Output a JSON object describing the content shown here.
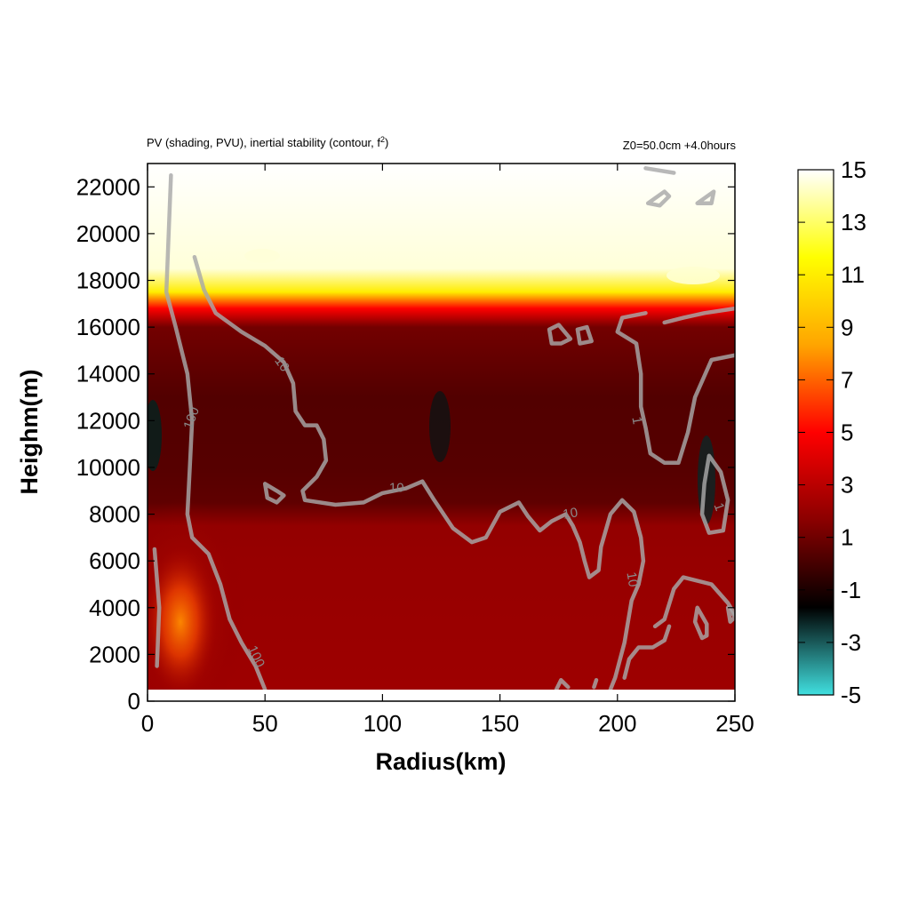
{
  "chart_data": {
    "type": "heatmap",
    "title": "PV (shading, PVU), inertial stability (contour, f",
    "title_superscript": "2",
    "title_suffix": ")",
    "annotation": "Z0=50.0cm  +4.0hours",
    "xlabel": "Radius(km)",
    "ylabel": "Heighm(m)",
    "xlim": [
      0,
      250
    ],
    "ylim": [
      0,
      23000
    ],
    "x_ticks": [
      "0",
      "50",
      "100",
      "150",
      "200",
      "250"
    ],
    "y_ticks": [
      "0",
      "2000",
      "4000",
      "6000",
      "8000",
      "10000",
      "12000",
      "14000",
      "16000",
      "18000",
      "20000",
      "22000"
    ],
    "colorbar": {
      "min": -5,
      "max": 15,
      "ticks": [
        "15",
        "13",
        "11",
        "9",
        "7",
        "5",
        "3",
        "1",
        "-1",
        "-3",
        "-5"
      ],
      "colors": [
        "#40e0e0",
        "#000000",
        "#8b0000",
        "#ff0000",
        "#ffa500",
        "#ffff00",
        "#ffffff"
      ]
    },
    "shading_profile": {
      "description_heights_m": [
        500,
        3000,
        6000,
        7500,
        8500,
        10000,
        13000,
        16000,
        16800,
        17500,
        18500,
        23000
      ],
      "pv_values": [
        2.2,
        2.1,
        2.0,
        1.9,
        0.6,
        0.4,
        0.3,
        1.1,
        5,
        11,
        14.5,
        15
      ],
      "core_maximum_pv": 7.0,
      "core_location_km_m": [
        15,
        3000
      ]
    },
    "contours": [
      {
        "level": "100",
        "points": [
          [
            10,
            22500
          ],
          [
            9,
            20000
          ],
          [
            8,
            17500
          ],
          [
            12,
            16000
          ],
          [
            17,
            14000
          ],
          [
            19,
            12000
          ],
          [
            18,
            10000
          ],
          [
            17,
            8000
          ],
          [
            19,
            7000
          ],
          [
            26,
            6300
          ],
          [
            31,
            5000
          ],
          [
            35,
            3500
          ],
          [
            40,
            2500
          ],
          [
            46,
            1500
          ],
          [
            50,
            500
          ]
        ]
      },
      {
        "level": "100",
        "points": [
          [
            3,
            6500
          ],
          [
            5,
            4000
          ],
          [
            4,
            1500
          ]
        ]
      },
      {
        "level": "10",
        "points": [
          [
            20,
            19000
          ],
          [
            24,
            17600
          ],
          [
            29,
            16600
          ],
          [
            40,
            15800
          ],
          [
            50,
            15200
          ],
          [
            58,
            14500
          ],
          [
            62,
            13600
          ],
          [
            63,
            12400
          ],
          [
            67,
            11800
          ],
          [
            72,
            11800
          ],
          [
            75,
            11200
          ],
          [
            76,
            10300
          ],
          [
            72,
            9600
          ],
          [
            66,
            9000
          ],
          [
            67,
            8600
          ],
          [
            80,
            8400
          ],
          [
            92,
            8500
          ],
          [
            100,
            8900
          ],
          [
            110,
            9100
          ],
          [
            117,
            9400
          ],
          [
            122,
            8600
          ],
          [
            130,
            7400
          ],
          [
            138,
            6800
          ],
          [
            144,
            7000
          ],
          [
            150,
            8100
          ],
          [
            158,
            8500
          ],
          [
            162,
            7900
          ],
          [
            167,
            7300
          ],
          [
            172,
            7700
          ],
          [
            178,
            8000
          ],
          [
            181,
            7500
          ],
          [
            184,
            6800
          ],
          [
            186,
            6000
          ],
          [
            188,
            5300
          ],
          [
            192,
            5600
          ],
          [
            193,
            6600
          ],
          [
            197,
            8000
          ],
          [
            202,
            8600
          ],
          [
            207,
            8100
          ],
          [
            210,
            7000
          ],
          [
            211,
            6000
          ],
          [
            209,
            5000
          ],
          [
            206,
            4300
          ],
          [
            203,
            2500
          ],
          [
            199,
            1000
          ],
          [
            197,
            500
          ]
        ]
      },
      {
        "level": "10",
        "points": [
          [
            50,
            9300
          ],
          [
            55,
            9000
          ],
          [
            58,
            8800
          ],
          [
            55,
            8500
          ],
          [
            51,
            8700
          ],
          [
            50,
            9300
          ]
        ]
      },
      {
        "level": "1",
        "points": [
          [
            212,
            16600
          ],
          [
            202,
            16400
          ],
          [
            200,
            15800
          ],
          [
            208,
            15300
          ],
          [
            210,
            14000
          ],
          [
            210,
            12600
          ],
          [
            212,
            11700
          ],
          [
            214,
            10600
          ],
          [
            220,
            10200
          ],
          [
            226,
            10200
          ],
          [
            230,
            11500
          ],
          [
            233,
            13000
          ],
          [
            240,
            14600
          ],
          [
            250,
            14800
          ]
        ]
      },
      {
        "level": "1",
        "points": [
          [
            220,
            16200
          ],
          [
            228,
            16400
          ],
          [
            237,
            16600
          ],
          [
            250,
            16800
          ]
        ]
      },
      {
        "level": "1",
        "points": [
          [
            239,
            10500
          ],
          [
            244,
            9800
          ],
          [
            247,
            8600
          ],
          [
            245,
            7300
          ],
          [
            239,
            7200
          ],
          [
            236,
            8000
          ],
          [
            237,
            9300
          ],
          [
            239,
            10500
          ]
        ]
      },
      {
        "level": "1",
        "points": [
          [
            176,
            15300
          ],
          [
            180,
            15500
          ],
          [
            175,
            16100
          ],
          [
            171,
            15900
          ],
          [
            172,
            15300
          ],
          [
            176,
            15300
          ]
        ]
      },
      {
        "level": "1",
        "points": [
          [
            184,
            15300
          ],
          [
            189,
            15400
          ],
          [
            187,
            16000
          ],
          [
            183,
            15900
          ],
          [
            184,
            15300
          ]
        ]
      },
      {
        "level": "1",
        "points": [
          [
            213,
            21300
          ],
          [
            220,
            21800
          ],
          [
            222,
            21600
          ],
          [
            218,
            21200
          ],
          [
            213,
            21300
          ]
        ]
      },
      {
        "level": "1",
        "points": [
          [
            234,
            21300
          ],
          [
            241,
            21800
          ],
          [
            240,
            21300
          ],
          [
            234,
            21300
          ]
        ]
      },
      {
        "level": "1",
        "points": [
          [
            212,
            22800
          ],
          [
            224,
            22600
          ]
        ]
      },
      {
        "level": "10",
        "points": [
          [
            216,
            3200
          ],
          [
            220,
            3500
          ],
          [
            224,
            4800
          ],
          [
            228,
            5300
          ],
          [
            240,
            5000
          ],
          [
            247,
            4200
          ],
          [
            250,
            3700
          ]
        ]
      },
      {
        "level": "10",
        "points": [
          [
            234,
            4000
          ],
          [
            238,
            3300
          ],
          [
            238,
            2800
          ],
          [
            236,
            2700
          ],
          [
            233,
            3400
          ],
          [
            234,
            4000
          ]
        ]
      },
      {
        "level": "10",
        "points": [
          [
            203,
            1000
          ],
          [
            205,
            1800
          ],
          [
            209,
            2300
          ],
          [
            215,
            2300
          ],
          [
            220,
            2600
          ],
          [
            222,
            3200
          ]
        ]
      },
      {
        "level": "1",
        "points": [
          [
            247,
            4000
          ],
          [
            250,
            3600
          ],
          [
            248,
            3400
          ],
          [
            247,
            4000
          ]
        ]
      },
      {
        "level": "10",
        "points": [
          [
            174,
            500
          ],
          [
            176,
            900
          ],
          [
            179,
            600
          ]
        ]
      },
      {
        "level": "10",
        "points": [
          [
            190,
            600
          ],
          [
            191,
            900
          ]
        ]
      }
    ],
    "contour_labels": [
      {
        "text": "100",
        "x": 19,
        "y": 12100,
        "rotate": -70
      },
      {
        "text": "100",
        "x": 46,
        "y": 1900,
        "rotate": 65
      },
      {
        "text": "10",
        "x": 57,
        "y": 14400,
        "rotate": 55
      },
      {
        "text": "10",
        "x": 106,
        "y": 9100,
        "rotate": 0
      },
      {
        "text": "10",
        "x": 180,
        "y": 8000,
        "rotate": -10
      },
      {
        "text": "10",
        "x": 206,
        "y": 5200,
        "rotate": 80
      },
      {
        "text": "1",
        "x": 208,
        "y": 12000,
        "rotate": 80
      },
      {
        "text": "1",
        "x": 243,
        "y": 8300,
        "rotate": 70
      }
    ]
  }
}
